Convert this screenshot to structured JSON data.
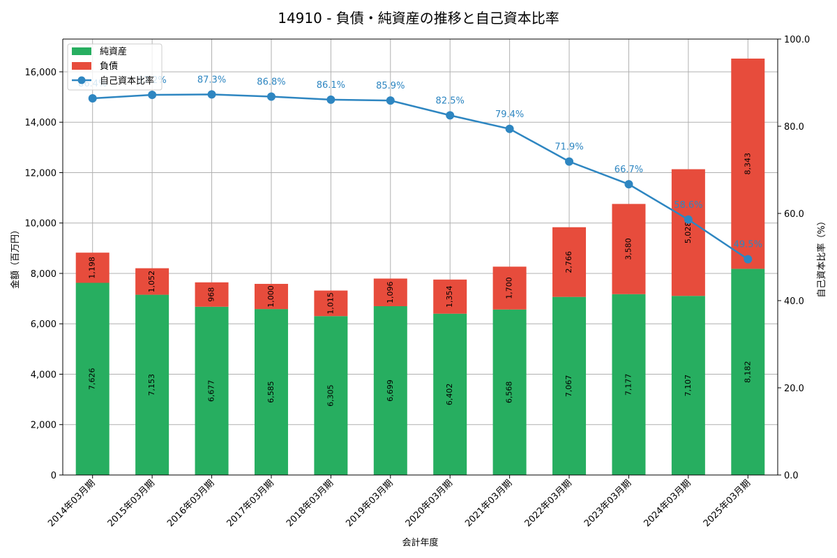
{
  "chart_data": {
    "type": "bar",
    "title": "14910 - 負債・純資産の推移と自己資本比率",
    "xlabel": "会計年度",
    "ylabel": "金額（百万円）",
    "y2label": "自己資本比率（%）",
    "ylim": [
      0,
      17300
    ],
    "y2lim": [
      0,
      100
    ],
    "yticks": [
      0,
      2000,
      4000,
      6000,
      8000,
      10000,
      12000,
      14000,
      16000
    ],
    "y2ticks": [
      0,
      20,
      40,
      60,
      80,
      100
    ],
    "grid": true,
    "legend": "top-left",
    "categories": [
      "2014年03月期",
      "2015年03月期",
      "2016年03月期",
      "2017年03月期",
      "2018年03月期",
      "2019年03月期",
      "2020年03月期",
      "2021年03月期",
      "2022年03月期",
      "2023年03月期",
      "2024年03月期",
      "2025年03月期"
    ],
    "series": [
      {
        "name": "純資産",
        "kind": "bar",
        "color": "#27ae60",
        "values": [
          7626,
          7153,
          6677,
          6585,
          6305,
          6699,
          6402,
          6568,
          7067,
          7177,
          7107,
          8182
        ]
      },
      {
        "name": "負債",
        "kind": "bar",
        "color": "#e74c3c",
        "values": [
          1198,
          1052,
          968,
          1000,
          1015,
          1096,
          1354,
          1700,
          2766,
          3580,
          5028,
          8343
        ]
      },
      {
        "name": "自己資本比率",
        "kind": "line",
        "axis": "right",
        "color": "#2e86c1",
        "values": [
          86.4,
          87.2,
          87.3,
          86.8,
          86.1,
          85.9,
          82.5,
          79.4,
          71.9,
          66.7,
          58.6,
          49.5
        ]
      }
    ]
  }
}
